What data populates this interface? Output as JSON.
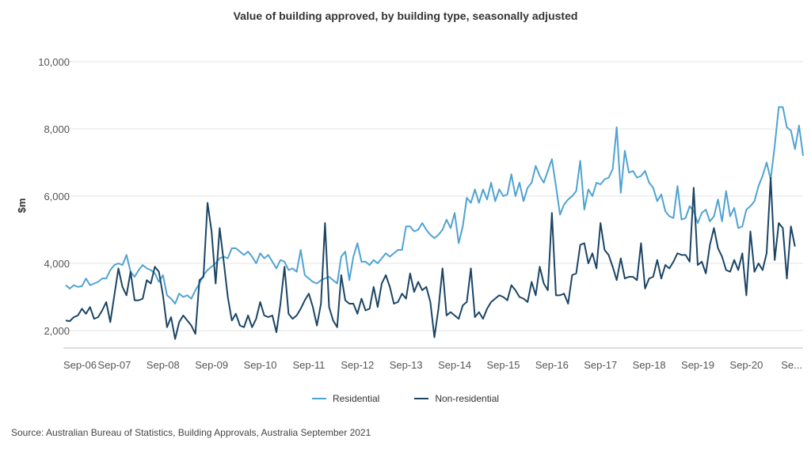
{
  "chart_data": {
    "type": "line",
    "title": "Value of building approved, by building type, seasonally adjusted",
    "ylabel": "$m",
    "xlabel": "",
    "ylim": [
      1500,
      10500
    ],
    "y_ticks": [
      2000,
      4000,
      6000,
      8000,
      10000
    ],
    "y_tick_labels": [
      "2,000",
      "4,000",
      "6,000",
      "8,000",
      "10,000"
    ],
    "x_tick_labels": [
      "Sep-06",
      "Sep-07",
      "Sep-08",
      "Sep-09",
      "Sep-10",
      "Sep-11",
      "Sep-12",
      "Sep-13",
      "Sep-14",
      "Sep-15",
      "Sep-16",
      "Sep-17",
      "Sep-18",
      "Sep-19",
      "Sep-20",
      "Se..."
    ],
    "x_tick_months": [
      0,
      12,
      24,
      36,
      48,
      60,
      72,
      84,
      96,
      108,
      120,
      132,
      144,
      156,
      168,
      180
    ],
    "x_period": "monthly, Sep-2006 to Sep-2021",
    "grid": "horizontal",
    "legend_position": "bottom",
    "series": [
      {
        "name": "Residential",
        "color": "#4fa3d1",
        "values": [
          3350,
          3250,
          3350,
          3300,
          3320,
          3550,
          3350,
          3400,
          3450,
          3550,
          3550,
          3800,
          3950,
          4000,
          3950,
          4250,
          3750,
          3600,
          3800,
          3950,
          3850,
          3800,
          3700,
          3450,
          3650,
          3050,
          2950,
          2800,
          3100,
          3000,
          3050,
          2950,
          3200,
          3400,
          3650,
          3800,
          3900,
          4000,
          4150,
          4200,
          4150,
          4450,
          4450,
          4350,
          4250,
          4350,
          4200,
          4000,
          4300,
          4150,
          4250,
          4050,
          3850,
          4100,
          4050,
          3800,
          3850,
          3750,
          4400,
          3650,
          3550,
          3450,
          3400,
          3500,
          3550,
          3600,
          3500,
          3400,
          4200,
          4350,
          3500,
          4200,
          4600,
          4050,
          4050,
          3950,
          4100,
          4000,
          4150,
          4300,
          4200,
          4300,
          4400,
          4400,
          5100,
          5100,
          4950,
          5000,
          5200,
          5000,
          4850,
          4750,
          4850,
          5000,
          5300,
          5050,
          5500,
          4600,
          5100,
          5950,
          5800,
          6200,
          5800,
          6200,
          5900,
          6400,
          5850,
          6200,
          6000,
          6050,
          6650,
          6000,
          6400,
          5850,
          6250,
          6400,
          6900,
          6600,
          6400,
          6750,
          7100,
          6300,
          5450,
          5750,
          5900,
          6000,
          6150,
          7050,
          5600,
          6200,
          6000,
          6400,
          6350,
          6500,
          6550,
          6800,
          8050,
          6100,
          7350,
          6700,
          6750,
          6550,
          6600,
          6750,
          6400,
          6250,
          5850,
          6050,
          5550,
          5400,
          5350,
          6300,
          5300,
          5350,
          5700,
          5550,
          5200,
          5500,
          5600,
          5250,
          5400,
          5900,
          5250,
          6150,
          5400,
          5650,
          5050,
          5100,
          5600,
          5700,
          5850,
          6300,
          6600,
          7000,
          6500,
          7500,
          8650,
          8650,
          8050,
          7950,
          7400,
          8100,
          7200
        ]
      },
      {
        "name": "Non-residential",
        "color": "#1b4565",
        "values": [
          2300,
          2280,
          2400,
          2450,
          2650,
          2500,
          2700,
          2350,
          2400,
          2600,
          2850,
          2250,
          3050,
          3850,
          3300,
          3050,
          3750,
          2900,
          2900,
          2950,
          3500,
          3400,
          3900,
          3750,
          3050,
          2100,
          2400,
          1750,
          2250,
          2450,
          2300,
          2150,
          1900,
          3500,
          3600,
          5800,
          4950,
          3400,
          5050,
          4050,
          3000,
          2300,
          2500,
          2150,
          2100,
          2450,
          2100,
          2350,
          2850,
          2450,
          2400,
          2450,
          1950,
          2800,
          3900,
          2500,
          2350,
          2450,
          2650,
          2900,
          3100,
          2700,
          2150,
          2800,
          5200,
          2700,
          2300,
          2100,
          3650,
          2900,
          2800,
          2800,
          2500,
          2950,
          2600,
          2650,
          3300,
          2700,
          3400,
          3650,
          3300,
          2800,
          2850,
          3100,
          2950,
          3700,
          3150,
          3450,
          3200,
          3300,
          2850,
          1800,
          2650,
          3850,
          2450,
          2550,
          2450,
          2350,
          2750,
          2850,
          3850,
          2400,
          2550,
          2350,
          2650,
          2850,
          2950,
          3050,
          3000,
          2900,
          3350,
          3200,
          3000,
          2950,
          2850,
          3450,
          3050,
          3900,
          3400,
          3200,
          5500,
          3050,
          3050,
          3100,
          2800,
          3650,
          3700,
          4550,
          4600,
          4000,
          4300,
          3850,
          5200,
          4400,
          4250,
          3900,
          3500,
          4150,
          3550,
          3600,
          3600,
          3500,
          4600,
          3250,
          3550,
          3600,
          4100,
          3550,
          3950,
          3850,
          4050,
          4300,
          4250,
          4250,
          4050,
          6250,
          3950,
          4050,
          3700,
          4550,
          5050,
          4450,
          4200,
          3800,
          3750,
          4100,
          3800,
          4300,
          3050,
          4950,
          3750,
          4000,
          3800,
          4300,
          6550,
          4100,
          5200,
          5050,
          3550,
          5100,
          4500
        ]
      }
    ],
    "source": "Source: Australian Bureau of Statistics, Building Approvals, Australia September 2021"
  }
}
